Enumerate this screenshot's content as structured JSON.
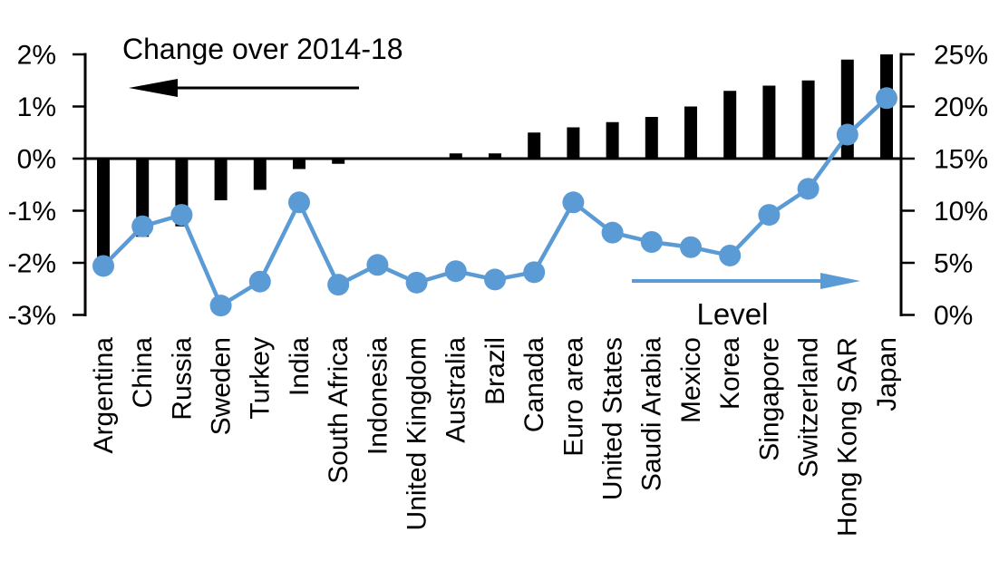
{
  "chart_data": {
    "type": "bar+line",
    "title": "Change over 2014-18",
    "categories": [
      "Argentina",
      "China",
      "Russia",
      "Sweden",
      "Turkey",
      "India",
      "South Africa",
      "Indonesia",
      "United Kingdom",
      "Australia",
      "Brazil",
      "Canada",
      "Euro area",
      "United States",
      "Saudi Arabia",
      "Mexico",
      "Korea",
      "Singapore",
      "Switzerland",
      "Hong Kong SAR",
      "Japan"
    ],
    "series": [
      {
        "name": "Change over 2014-18",
        "type": "bar",
        "axis": "left",
        "color": "#000000",
        "values": [
          -2.0,
          -1.5,
          -1.3,
          -0.8,
          -0.6,
          -0.2,
          -0.1,
          0,
          0,
          0.1,
          0.1,
          0.5,
          0.6,
          0.7,
          0.8,
          1.0,
          1.3,
          1.4,
          1.5,
          1.9,
          2.0
        ]
      },
      {
        "name": "Level",
        "type": "line",
        "axis": "right",
        "color": "#5b9bd5",
        "values": [
          4.7,
          8.5,
          9.6,
          0.9,
          3.2,
          10.8,
          2.9,
          4.8,
          3.1,
          4.2,
          3.4,
          4.1,
          10.8,
          7.9,
          7.0,
          6.5,
          5.7,
          9.6,
          12.1,
          17.3,
          20.8
        ]
      }
    ],
    "left_axis": {
      "min": -3,
      "max": 2,
      "tick_values": [
        2,
        1,
        0,
        -1,
        -2,
        -3
      ],
      "tick_labels": [
        "2%",
        "1%",
        "0%",
        "-1%",
        "-2%",
        "-3%"
      ]
    },
    "right_axis": {
      "min": 0,
      "max": 25,
      "tick_values": [
        25,
        20,
        15,
        10,
        5,
        0
      ],
      "tick_labels": [
        "25%",
        "20%",
        "15%",
        "10%",
        "5%",
        "0%"
      ]
    },
    "grid": "off",
    "legend_position": "none",
    "annotations": [
      {
        "text": "Change over 2014-18",
        "arrow_direction": "left",
        "arrow_color": "#000000"
      },
      {
        "text": "Level",
        "arrow_direction": "right",
        "arrow_color": "#5b9bd5"
      }
    ]
  },
  "labels": {
    "bar_series": "Change over 2014-18",
    "line_series": "Level"
  },
  "colors": {
    "bar": "#000000",
    "line": "#5b9bd5",
    "axis": "#000000",
    "background": "#ffffff"
  }
}
